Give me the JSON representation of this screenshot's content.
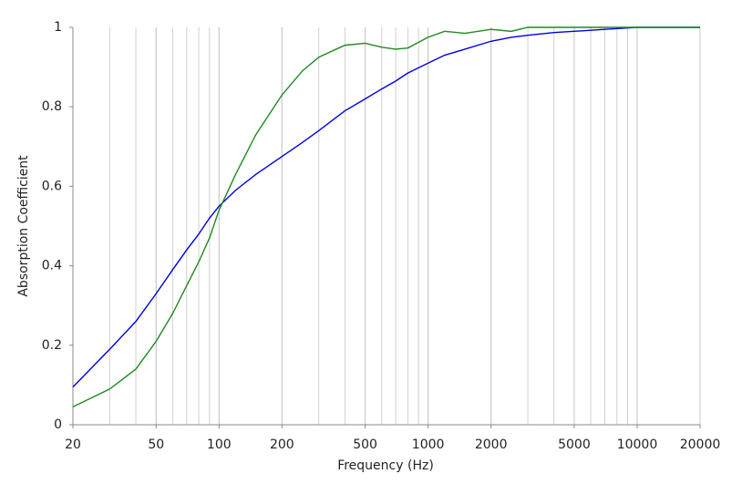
{
  "chart_data": {
    "type": "line",
    "x_label": "Frequency (Hz)",
    "y_label": "Absorption Coefficient",
    "x_scale": "log",
    "grid": "x",
    "xlim": [
      20,
      20000
    ],
    "ylim": [
      0,
      1
    ],
    "xticks": [
      20,
      50,
      100,
      200,
      500,
      1000,
      2000,
      5000,
      10000,
      20000
    ],
    "yticks": [
      0,
      0.2,
      0.4,
      0.6,
      0.8,
      1
    ],
    "x": [
      20,
      30,
      40,
      50,
      60,
      70,
      80,
      90,
      100,
      120,
      150,
      200,
      250,
      300,
      400,
      500,
      600,
      700,
      800,
      1000,
      1200,
      1500,
      2000,
      2500,
      3000,
      4000,
      5000,
      7000,
      10000,
      20000
    ],
    "series": [
      {
        "color": "#0000e6",
        "values": [
          0.095,
          0.19,
          0.26,
          0.33,
          0.39,
          0.44,
          0.48,
          0.52,
          0.55,
          0.59,
          0.63,
          0.675,
          0.71,
          0.74,
          0.79,
          0.82,
          0.845,
          0.865,
          0.885,
          0.91,
          0.93,
          0.945,
          0.965,
          0.975,
          0.98,
          0.987,
          0.99,
          0.995,
          1,
          1
        ]
      },
      {
        "color": "#1f8a1f",
        "values": [
          0.045,
          0.09,
          0.14,
          0.21,
          0.28,
          0.35,
          0.41,
          0.47,
          0.54,
          0.63,
          0.73,
          0.83,
          0.89,
          0.925,
          0.955,
          0.96,
          0.95,
          0.945,
          0.948,
          0.975,
          0.99,
          0.985,
          0.995,
          0.99,
          1,
          1,
          1,
          1,
          1,
          1
        ]
      }
    ]
  }
}
